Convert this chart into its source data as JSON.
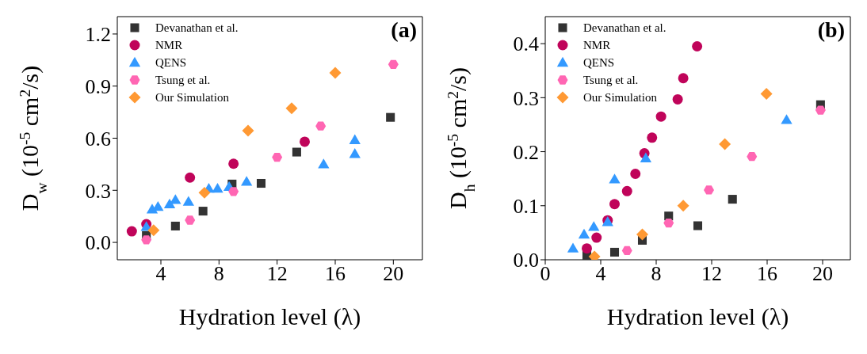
{
  "chart_data": [
    {
      "type": "scatter",
      "xlabel": "Hydration level (λ)",
      "ylabel": "D$_{w}$ (10$^{-5}$ cm$^{2}$/s)",
      "annotations": [
        "(a)"
      ],
      "xlim": [
        1,
        22
      ],
      "xticks": [
        4,
        8,
        12,
        16,
        20
      ],
      "ylim": [
        -0.1,
        1.3
      ],
      "yticks": [
        {
          "value": 0,
          "label": "0.0"
        },
        0.3,
        0.6,
        0.9,
        1.2
      ],
      "legend": "top left",
      "grid": false,
      "series": [
        {
          "name": "Devanathan et al.",
          "color": "#333333",
          "marker": "square",
          "x": [
            3.0,
            5.0,
            6.9,
            8.9,
            10.9,
            13.35,
            19.8
          ],
          "values": [
            0.04,
            0.094,
            0.18,
            0.336,
            0.34,
            0.52,
            0.72
          ]
        },
        {
          "name": "NMR",
          "color": "#c0045a",
          "marker": "circle",
          "x": [
            2.0,
            3.0,
            6.0,
            9.0,
            13.9
          ],
          "values": [
            0.064,
            0.105,
            0.373,
            0.453,
            0.58
          ]
        },
        {
          "name": "QENS",
          "color": "#3399ff",
          "marker": "triangle",
          "x": [
            3.0,
            3.4,
            3.8,
            4.6,
            5.0,
            5.9,
            7.3,
            7.9,
            8.7,
            9.9,
            15.2,
            17.35,
            17.35
          ],
          "values": [
            0.09,
            0.19,
            0.205,
            0.22,
            0.245,
            0.235,
            0.31,
            0.31,
            0.32,
            0.35,
            0.45,
            0.59,
            0.51
          ]
        },
        {
          "name": "Tsung et al.",
          "color": "#ff66b3",
          "x": [
            3.0,
            6.0,
            9.0,
            12.0,
            15.0,
            20.0
          ],
          "values": [
            0.015,
            0.128,
            0.293,
            0.49,
            0.67,
            1.025
          ]
        },
        {
          "name": "Our Simulation",
          "color": "#ff9933",
          "marker": "diamond",
          "x": [
            3.5,
            7.0,
            10.0,
            13.0,
            16.0
          ],
          "values": [
            0.07,
            0.286,
            0.643,
            0.772,
            0.976
          ]
        }
      ]
    },
    {
      "type": "scatter",
      "xlabel": "Hydration level (λ)",
      "ylabel": "D$_{h}$ (10$^{-5}$ cm$^{2}$/s)",
      "annotations": [
        "(b)"
      ],
      "xlim": [
        0,
        22
      ],
      "xticks": [
        0,
        4,
        8,
        12,
        16,
        20
      ],
      "ylim": [
        0,
        0.45
      ],
      "yticks": [
        {
          "value": 0,
          "label": "0.0"
        },
        0.1,
        0.2,
        0.3,
        0.4
      ],
      "legend": "top left",
      "grid": false,
      "series": [
        {
          "name": "Devanathan et al.",
          "color": "#333333",
          "marker": "square",
          "x": [
            3.0,
            5.0,
            7.0,
            8.9,
            11.0,
            13.5,
            19.85
          ],
          "values": [
            0.008,
            0.014,
            0.036,
            0.081,
            0.063,
            0.112,
            0.287
          ]
        },
        {
          "name": "NMR",
          "color": "#c0045a",
          "marker": "circle",
          "x": [
            3.0,
            3.7,
            4.5,
            5.0,
            5.9,
            6.5,
            7.15,
            7.7,
            8.35,
            9.55,
            9.95,
            10.95
          ],
          "values": [
            0.021,
            0.041,
            0.073,
            0.103,
            0.127,
            0.159,
            0.197,
            0.226,
            0.265,
            0.297,
            0.336,
            0.395
          ]
        },
        {
          "name": "QENS",
          "color": "#3399ff",
          "marker": "triangle",
          "x": [
            2.0,
            2.8,
            3.5,
            4.5,
            5.0,
            7.25,
            17.4
          ],
          "values": [
            0.021,
            0.047,
            0.061,
            0.07,
            0.149,
            0.188,
            0.259
          ]
        },
        {
          "name": "Tsung et al.",
          "color": "#ff66b3",
          "x": [
            5.9,
            8.9,
            11.8,
            14.9,
            19.85
          ],
          "values": [
            0.017,
            0.068,
            0.129,
            0.191,
            0.277
          ]
        },
        {
          "name": "Our Simulation",
          "color": "#ff9933",
          "marker": "diamond",
          "x": [
            3.55,
            7.0,
            9.95,
            12.95,
            15.95
          ],
          "values": [
            0.006,
            0.047,
            0.1,
            0.214,
            0.307
          ]
        }
      ]
    }
  ]
}
